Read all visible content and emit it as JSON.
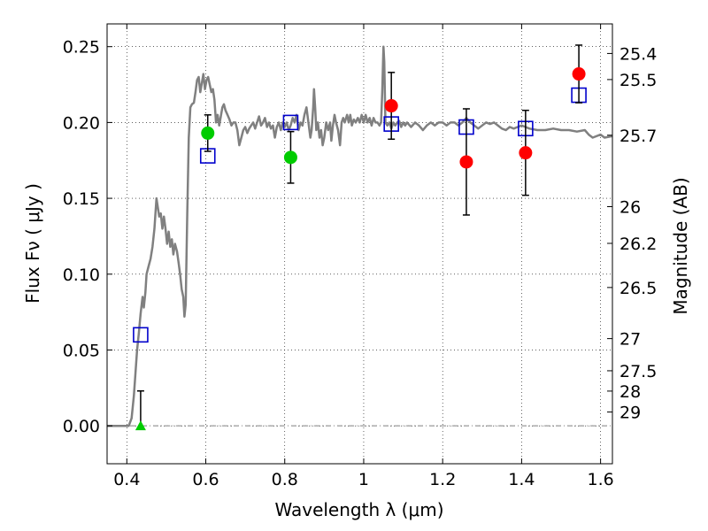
{
  "chart_data": {
    "type": "scatter",
    "title": "",
    "xlabel": "Wavelength  λ (μm)",
    "ylabel": "Flux  Fν  ( μJy )",
    "y2label": "Magnitude (AB)",
    "xlim": [
      0.35,
      1.63
    ],
    "ylim": [
      -0.025,
      0.265
    ],
    "grid": true,
    "x_ticks": [
      0.4,
      0.6,
      0.8,
      1.0,
      1.2,
      1.4,
      1.6
    ],
    "x_tick_labels": [
      "0.4",
      "0.6",
      "0.8",
      "1",
      "1.2",
      "1.4",
      "1.6"
    ],
    "y_ticks": [
      0.0,
      0.05,
      0.1,
      0.15,
      0.2,
      0.25
    ],
    "y_tick_labels": [
      "0.00",
      "0.05",
      "0.10",
      "0.15",
      "0.20",
      "0.25"
    ],
    "y2_ticks": [
      {
        "label": "25.4",
        "flux": 0.2455
      },
      {
        "label": "25.5",
        "flux": 0.2283
      },
      {
        "label": "25.7",
        "flux": 0.1916
      },
      {
        "label": "26",
        "flux": 0.1445
      },
      {
        "label": "26.2",
        "flux": 0.1203
      },
      {
        "label": "26.5",
        "flux": 0.0912
      },
      {
        "label": "27",
        "flux": 0.0575
      },
      {
        "label": "27.5",
        "flux": 0.0363
      },
      {
        "label": "28",
        "flux": 0.0229
      },
      {
        "label": "29",
        "flux": 0.0091
      }
    ],
    "model_spectrum": {
      "color": "#808080",
      "points": [
        [
          0.35,
          0.0
        ],
        [
          0.405,
          0.0
        ],
        [
          0.412,
          0.005
        ],
        [
          0.418,
          0.02
        ],
        [
          0.422,
          0.035
        ],
        [
          0.426,
          0.05
        ],
        [
          0.43,
          0.06
        ],
        [
          0.435,
          0.074
        ],
        [
          0.44,
          0.085
        ],
        [
          0.443,
          0.078
        ],
        [
          0.447,
          0.088
        ],
        [
          0.45,
          0.1
        ],
        [
          0.455,
          0.105
        ],
        [
          0.46,
          0.11
        ],
        [
          0.465,
          0.118
        ],
        [
          0.47,
          0.13
        ],
        [
          0.475,
          0.15
        ],
        [
          0.478,
          0.145
        ],
        [
          0.482,
          0.138
        ],
        [
          0.486,
          0.14
        ],
        [
          0.49,
          0.13
        ],
        [
          0.494,
          0.138
        ],
        [
          0.498,
          0.13
        ],
        [
          0.502,
          0.12
        ],
        [
          0.506,
          0.128
        ],
        [
          0.51,
          0.118
        ],
        [
          0.514,
          0.123
        ],
        [
          0.518,
          0.113
        ],
        [
          0.522,
          0.12
        ],
        [
          0.527,
          0.115
        ],
        [
          0.531,
          0.108
        ],
        [
          0.535,
          0.1
        ],
        [
          0.539,
          0.09
        ],
        [
          0.543,
          0.085
        ],
        [
          0.546,
          0.072
        ],
        [
          0.549,
          0.08
        ],
        [
          0.553,
          0.14
        ],
        [
          0.557,
          0.19
        ],
        [
          0.561,
          0.21
        ],
        [
          0.565,
          0.212
        ],
        [
          0.57,
          0.213
        ],
        [
          0.574,
          0.22
        ],
        [
          0.578,
          0.228
        ],
        [
          0.582,
          0.23
        ],
        [
          0.586,
          0.22
        ],
        [
          0.59,
          0.226
        ],
        [
          0.594,
          0.232
        ],
        [
          0.598,
          0.222
        ],
        [
          0.602,
          0.228
        ],
        [
          0.606,
          0.23
        ],
        [
          0.61,
          0.225
        ],
        [
          0.614,
          0.22
        ],
        [
          0.618,
          0.222
        ],
        [
          0.622,
          0.215
        ],
        [
          0.626,
          0.2
        ],
        [
          0.63,
          0.205
        ],
        [
          0.634,
          0.198
        ],
        [
          0.638,
          0.204
        ],
        [
          0.642,
          0.21
        ],
        [
          0.646,
          0.212
        ],
        [
          0.65,
          0.208
        ],
        [
          0.655,
          0.205
        ],
        [
          0.66,
          0.202
        ],
        [
          0.665,
          0.198
        ],
        [
          0.67,
          0.2
        ],
        [
          0.675,
          0.2
        ],
        [
          0.68,
          0.195
        ],
        [
          0.685,
          0.185
        ],
        [
          0.69,
          0.19
        ],
        [
          0.695,
          0.195
        ],
        [
          0.7,
          0.197
        ],
        [
          0.705,
          0.193
        ],
        [
          0.71,
          0.196
        ],
        [
          0.715,
          0.198
        ],
        [
          0.72,
          0.2
        ],
        [
          0.725,
          0.196
        ],
        [
          0.73,
          0.2
        ],
        [
          0.735,
          0.204
        ],
        [
          0.74,
          0.198
        ],
        [
          0.745,
          0.2
        ],
        [
          0.75,
          0.203
        ],
        [
          0.755,
          0.197
        ],
        [
          0.76,
          0.2
        ],
        [
          0.765,
          0.196
        ],
        [
          0.77,
          0.198
        ],
        [
          0.775,
          0.19
        ],
        [
          0.78,
          0.197
        ],
        [
          0.785,
          0.2
        ],
        [
          0.79,
          0.195
        ],
        [
          0.795,
          0.2
        ],
        [
          0.8,
          0.197
        ],
        [
          0.805,
          0.2
        ],
        [
          0.81,
          0.195
        ],
        [
          0.815,
          0.198
        ],
        [
          0.82,
          0.203
        ],
        [
          0.825,
          0.2
        ],
        [
          0.83,
          0.205
        ],
        [
          0.835,
          0.195
        ],
        [
          0.84,
          0.2
        ],
        [
          0.845,
          0.198
        ],
        [
          0.85,
          0.205
        ],
        [
          0.855,
          0.21
        ],
        [
          0.86,
          0.2
        ],
        [
          0.865,
          0.19
        ],
        [
          0.868,
          0.195
        ],
        [
          0.872,
          0.21
        ],
        [
          0.874,
          0.222
        ],
        [
          0.877,
          0.21
        ],
        [
          0.88,
          0.195
        ],
        [
          0.884,
          0.2
        ],
        [
          0.888,
          0.19
        ],
        [
          0.892,
          0.195
        ],
        [
          0.896,
          0.185
        ],
        [
          0.9,
          0.19
        ],
        [
          0.905,
          0.2
        ],
        [
          0.91,
          0.195
        ],
        [
          0.915,
          0.2
        ],
        [
          0.918,
          0.188
        ],
        [
          0.922,
          0.198
        ],
        [
          0.926,
          0.205
        ],
        [
          0.93,
          0.2
        ],
        [
          0.935,
          0.195
        ],
        [
          0.94,
          0.185
        ],
        [
          0.944,
          0.2
        ],
        [
          0.948,
          0.203
        ],
        [
          0.952,
          0.2
        ],
        [
          0.958,
          0.205
        ],
        [
          0.962,
          0.2
        ],
        [
          0.966,
          0.205
        ],
        [
          0.97,
          0.198
        ],
        [
          0.975,
          0.202
        ],
        [
          0.98,
          0.2
        ],
        [
          0.985,
          0.203
        ],
        [
          0.99,
          0.2
        ],
        [
          0.995,
          0.205
        ],
        [
          1.0,
          0.2
        ],
        [
          1.005,
          0.205
        ],
        [
          1.01,
          0.2
        ],
        [
          1.015,
          0.203
        ],
        [
          1.02,
          0.198
        ],
        [
          1.025,
          0.203
        ],
        [
          1.03,
          0.2
        ],
        [
          1.035,
          0.2
        ],
        [
          1.04,
          0.198
        ],
        [
          1.044,
          0.2
        ],
        [
          1.047,
          0.22
        ],
        [
          1.05,
          0.25
        ],
        [
          1.052,
          0.24
        ],
        [
          1.055,
          0.2
        ],
        [
          1.06,
          0.198
        ],
        [
          1.065,
          0.2
        ],
        [
          1.07,
          0.196
        ],
        [
          1.075,
          0.2
        ],
        [
          1.08,
          0.198
        ],
        [
          1.085,
          0.2
        ],
        [
          1.09,
          0.201
        ],
        [
          1.095,
          0.197
        ],
        [
          1.1,
          0.2
        ],
        [
          1.105,
          0.198
        ],
        [
          1.11,
          0.2
        ],
        [
          1.12,
          0.197
        ],
        [
          1.13,
          0.2
        ],
        [
          1.14,
          0.198
        ],
        [
          1.15,
          0.195
        ],
        [
          1.16,
          0.198
        ],
        [
          1.17,
          0.2
        ],
        [
          1.18,
          0.198
        ],
        [
          1.19,
          0.2
        ],
        [
          1.2,
          0.2
        ],
        [
          1.21,
          0.198
        ],
        [
          1.22,
          0.2
        ],
        [
          1.23,
          0.2
        ],
        [
          1.24,
          0.198
        ],
        [
          1.25,
          0.2
        ],
        [
          1.26,
          0.203
        ],
        [
          1.27,
          0.2
        ],
        [
          1.28,
          0.198
        ],
        [
          1.29,
          0.196
        ],
        [
          1.3,
          0.198
        ],
        [
          1.31,
          0.2
        ],
        [
          1.32,
          0.199
        ],
        [
          1.33,
          0.2
        ],
        [
          1.34,
          0.198
        ],
        [
          1.35,
          0.196
        ],
        [
          1.36,
          0.195
        ],
        [
          1.37,
          0.197
        ],
        [
          1.38,
          0.196
        ],
        [
          1.39,
          0.197
        ],
        [
          1.4,
          0.198
        ],
        [
          1.41,
          0.197
        ],
        [
          1.42,
          0.196
        ],
        [
          1.44,
          0.195
        ],
        [
          1.46,
          0.195
        ],
        [
          1.48,
          0.196
        ],
        [
          1.5,
          0.195
        ],
        [
          1.52,
          0.195
        ],
        [
          1.54,
          0.194
        ],
        [
          1.56,
          0.195
        ],
        [
          1.57,
          0.192
        ],
        [
          1.58,
          0.19
        ],
        [
          1.6,
          0.192
        ],
        [
          1.61,
          0.19
        ],
        [
          1.63,
          0.191
        ]
      ]
    },
    "series": [
      {
        "marker": "square",
        "color": "#0000cc",
        "points": [
          {
            "x": 0.435,
            "y": 0.06
          },
          {
            "x": 0.605,
            "y": 0.178
          },
          {
            "x": 0.815,
            "y": 0.2
          },
          {
            "x": 1.07,
            "y": 0.199
          },
          {
            "x": 1.26,
            "y": 0.197
          },
          {
            "x": 1.41,
            "y": 0.196
          },
          {
            "x": 1.545,
            "y": 0.218
          }
        ]
      },
      {
        "marker": "circle",
        "color": "#00cc00",
        "points": [
          {
            "x": 0.605,
            "y": 0.193,
            "err": 0.012
          },
          {
            "x": 0.815,
            "y": 0.177,
            "err": 0.017
          }
        ]
      },
      {
        "marker": "circle",
        "color": "#ff0000",
        "points": [
          {
            "x": 1.07,
            "y": 0.211,
            "err": 0.022
          },
          {
            "x": 1.26,
            "y": 0.174,
            "err": 0.035
          },
          {
            "x": 1.41,
            "y": 0.18,
            "err": 0.028
          },
          {
            "x": 1.545,
            "y": 0.232,
            "err": 0.019
          }
        ]
      },
      {
        "marker": "triangle",
        "color": "#00cc00",
        "points": [
          {
            "x": 0.435,
            "y": 0.0,
            "err_up": 0.023
          }
        ]
      }
    ],
    "zero_line": {
      "y": 0.0,
      "color": "#808080",
      "style": "dash-dot"
    }
  }
}
